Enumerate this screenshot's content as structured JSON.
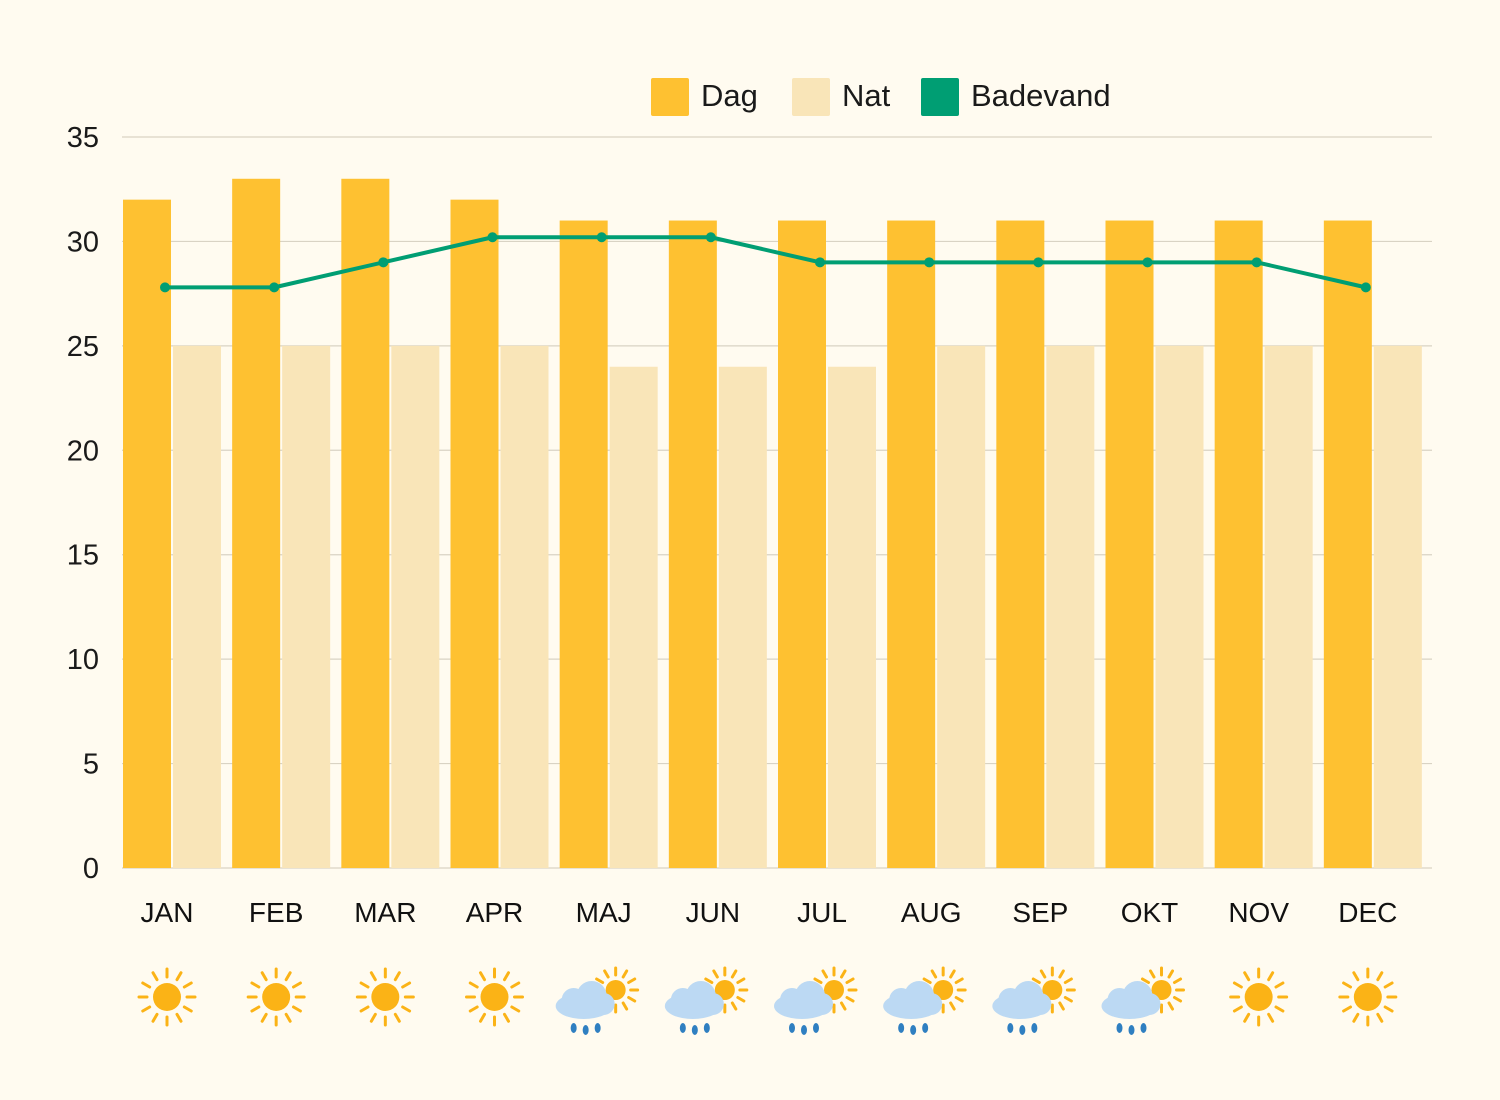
{
  "chart_data": {
    "type": "bar",
    "categories": [
      "JAN",
      "FEB",
      "MAR",
      "APR",
      "MAJ",
      "JUN",
      "JUL",
      "AUG",
      "SEP",
      "OKT",
      "NOV",
      "DEC"
    ],
    "series": [
      {
        "name": "Dag",
        "type": "bar",
        "color": "#fec131",
        "values": [
          32,
          33,
          33,
          32,
          31,
          31,
          31,
          31,
          31,
          31,
          31,
          31
        ]
      },
      {
        "name": "Nat",
        "type": "bar",
        "color": "#f9e5b8",
        "values": [
          25,
          25,
          25,
          25,
          24,
          24,
          24,
          25,
          25,
          25,
          25,
          25
        ]
      },
      {
        "name": "Badevand",
        "type": "line",
        "color": "#009e73",
        "values": [
          27.8,
          27.8,
          29,
          30.2,
          30.2,
          30.2,
          29,
          29,
          29,
          29,
          29,
          27.8
        ]
      }
    ],
    "ylim": [
      0,
      35
    ],
    "yticks": [
      0,
      5,
      10,
      15,
      20,
      25,
      30,
      35
    ],
    "grid": true,
    "legend": "top-center",
    "weather_icons": [
      "sun-icon",
      "sun-icon",
      "sun-icon",
      "sun-icon",
      "rain-sun-icon",
      "rain-sun-icon",
      "rain-sun-icon",
      "rain-sun-icon",
      "rain-sun-icon",
      "rain-sun-icon",
      "sun-icon",
      "sun-icon"
    ]
  },
  "colors": {
    "background": "#fffbf0",
    "grid": "#d9d3c4",
    "sun": "#fbb316",
    "cloud": "#bcd9f3",
    "rain": "#2f7fc1"
  }
}
